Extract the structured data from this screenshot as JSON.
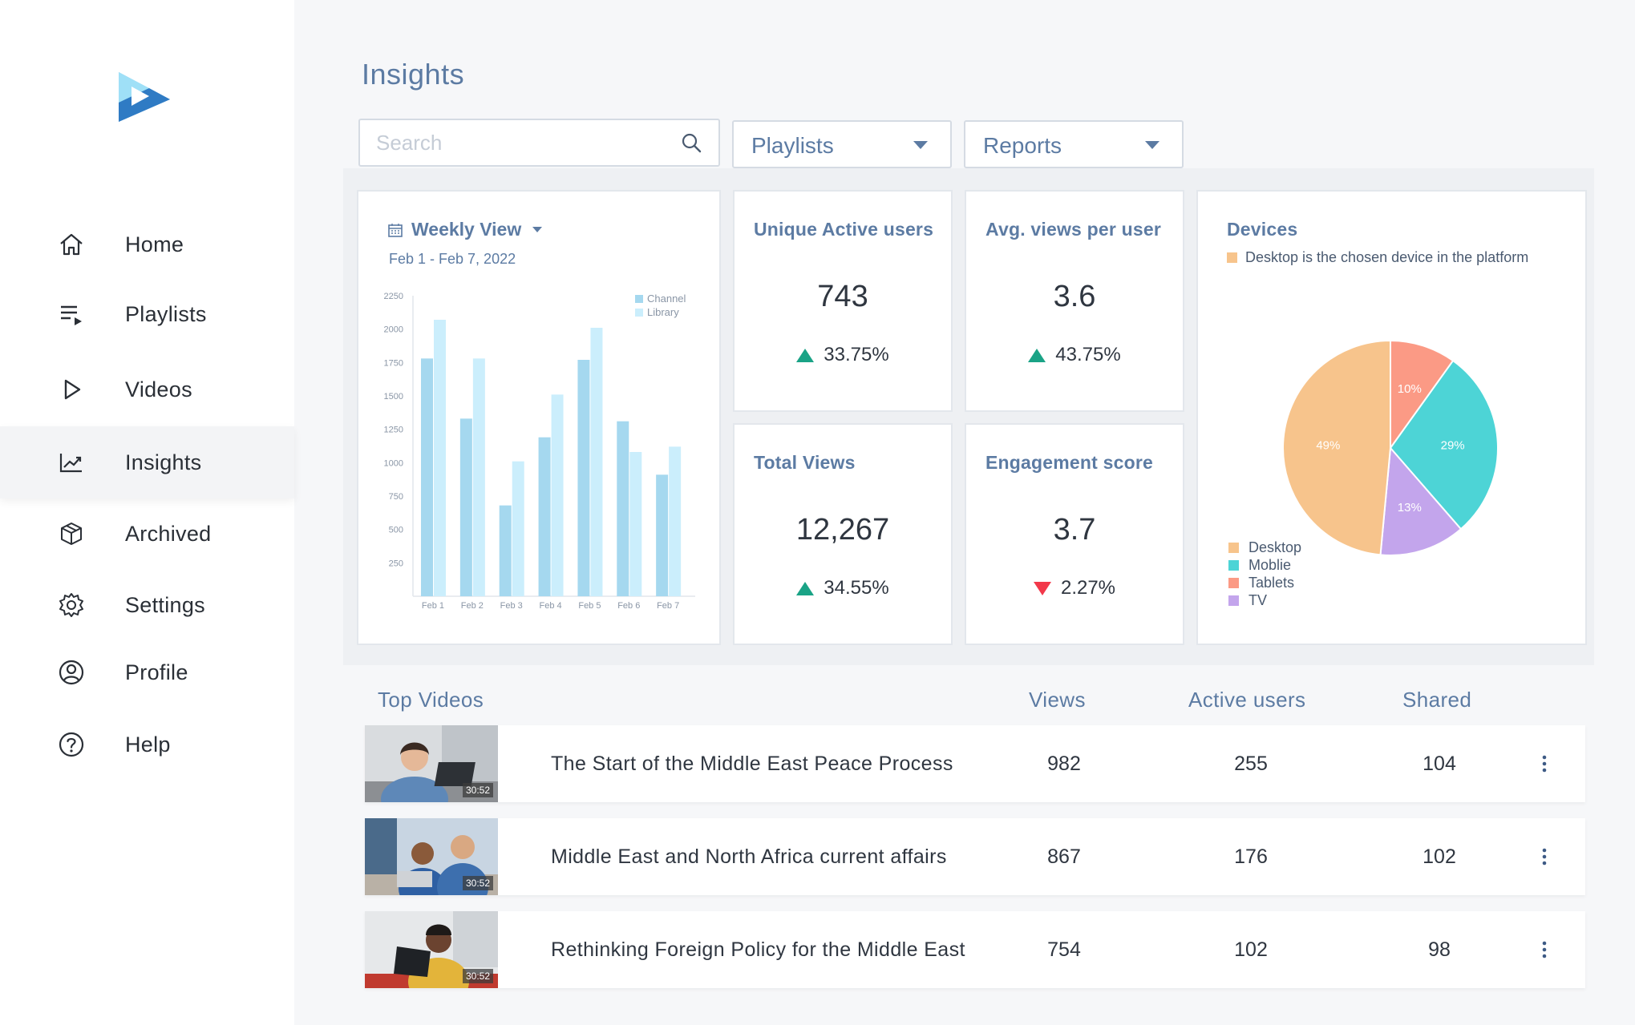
{
  "sidebar": {
    "items": [
      {
        "label": "Home",
        "icon": "home-icon",
        "active": false
      },
      {
        "label": "Playlists",
        "icon": "playlist-icon",
        "active": false
      },
      {
        "label": "Videos",
        "icon": "play-icon",
        "active": false
      },
      {
        "label": "Insights",
        "icon": "chart-trend-icon",
        "active": true
      },
      {
        "label": "Archived",
        "icon": "box-icon",
        "active": false
      },
      {
        "label": "Settings",
        "icon": "gear-icon",
        "active": false
      },
      {
        "label": "Profile",
        "icon": "user-circle-icon",
        "active": false
      },
      {
        "label": "Help",
        "icon": "help-icon",
        "active": false
      }
    ]
  },
  "header": {
    "title": "Insights"
  },
  "search": {
    "placeholder": "Search",
    "value": ""
  },
  "filters": {
    "playlists_label": "Playlists",
    "reports_label": "Reports"
  },
  "weekly": {
    "title": "Weekly View",
    "date_range": "Feb 1 - Feb 7, 2022"
  },
  "stats": {
    "unique_active_users": {
      "title": "Unique Active users",
      "value": "743",
      "change": "33.75%",
      "direction": "up"
    },
    "avg_views": {
      "title": "Avg. views per user",
      "value": "3.6",
      "change": "43.75%",
      "direction": "up"
    },
    "total_views": {
      "title": "Total Views",
      "value": "12,267",
      "change": "34.55%",
      "direction": "up"
    },
    "engagement": {
      "title": "Engagement score",
      "value": "3.7",
      "change": "2.27%",
      "direction": "down"
    }
  },
  "devices": {
    "title": "Devices",
    "subtitle": "Desktop is the chosen device in the platform",
    "legend": [
      "Desktop",
      "Moblie",
      "Tablets",
      "TV"
    ]
  },
  "colors": {
    "channel": "#a5d8ef",
    "library": "#cbeefc",
    "desktop": "#f7c48c",
    "mobile": "#4dd4d6",
    "tablets": "#fb9a85",
    "tv": "#c3a5ec",
    "up": "#1aa386",
    "down": "#f2384a",
    "accent": "#5c7ba3"
  },
  "chart_data": [
    {
      "type": "bar",
      "categories": [
        "Feb 1",
        "Feb 2",
        "Feb 3",
        "Feb 4",
        "Feb 5",
        "Feb 6",
        "Feb 7"
      ],
      "series": [
        {
          "name": "Channel",
          "values": [
            1780,
            1330,
            680,
            1190,
            1770,
            1310,
            910
          ]
        },
        {
          "name": "Library",
          "values": [
            2070,
            1780,
            1010,
            1510,
            2010,
            1080,
            1120
          ]
        }
      ],
      "yticks": [
        250,
        500,
        750,
        1000,
        1250,
        1500,
        1750,
        2000,
        2250
      ],
      "ylim": [
        0,
        2250
      ],
      "legend": "top-right",
      "grid": false
    },
    {
      "type": "pie",
      "labels": [
        "Desktop",
        "Moblie",
        "Tablets",
        "TV"
      ],
      "values": [
        49,
        29,
        10,
        13
      ],
      "slice_labels": [
        "49%",
        "29%",
        "10%",
        "13%"
      ],
      "legend": "bottom-left"
    }
  ],
  "table": {
    "title": "Top Videos",
    "columns": {
      "views": "Views",
      "active_users": "Active users",
      "shared": "Shared"
    },
    "rows": [
      {
        "title": "The Start of the Middle East Peace Process",
        "duration": "30:52",
        "views": "982",
        "active_users": "255",
        "shared": "104"
      },
      {
        "title": "Middle East and North Africa current affairs",
        "duration": "30:52",
        "views": "867",
        "active_users": "176",
        "shared": "102"
      },
      {
        "title": "Rethinking Foreign Policy for the Middle East",
        "duration": "30:52",
        "views": "754",
        "active_users": "102",
        "shared": "98"
      }
    ]
  }
}
